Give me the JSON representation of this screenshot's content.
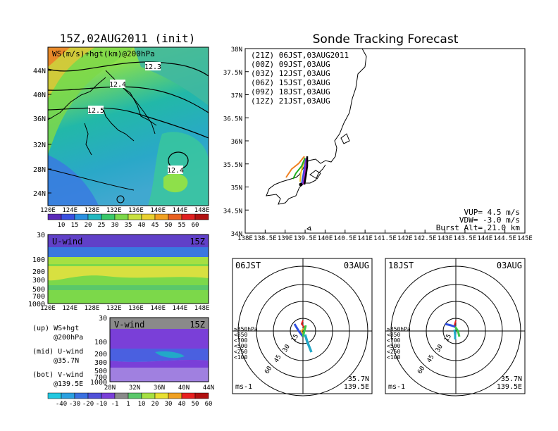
{
  "colors": {
    "purple": "#7a3fd8",
    "blue": "#2f4fe0",
    "teal": "#22a8c8",
    "green": "#3ac84a",
    "lime": "#a6e042",
    "yellow": "#e8e832",
    "orange": "#f0a020",
    "red": "#e82020",
    "dark_red": "#b01010",
    "gray": "#8a8a8a",
    "black": "#000000"
  },
  "left": {
    "title": "15Z,02AUG2011 (init)",
    "map_label": "WS(m/s)+hgt(km)@200hPa",
    "hgt_labels": [
      "12.3",
      "12.4",
      "12.5",
      "12.4"
    ],
    "lat_ticks": [
      "44N",
      "40N",
      "36N",
      "32N",
      "28N",
      "24N"
    ],
    "lon_ticks": [
      "120E",
      "124E",
      "128E",
      "132E",
      "136E",
      "140E",
      "144E",
      "148E"
    ],
    "ws_colorbar": [
      "10",
      "15",
      "20",
      "25",
      "30",
      "35",
      "40",
      "45",
      "50",
      "55",
      "60"
    ],
    "u_wind": {
      "label": "U-wind",
      "time": "15Z",
      "p_ticks": [
        "30",
        "100",
        "200",
        "300",
        "500",
        "700",
        "1000"
      ]
    },
    "v_wind": {
      "label": "V-wind",
      "time": "15Z",
      "p_ticks": [
        "30",
        "100",
        "200",
        "300",
        "500",
        "700",
        "1000"
      ],
      "lat_ticks": [
        "28N",
        "32N",
        "36N",
        "40N",
        "44N"
      ]
    },
    "legend": [
      [
        "(up) WS+hgt",
        "@200hPa"
      ],
      [
        "(mid) U-wind",
        "@35.7N"
      ],
      [
        "(bot) V-wind",
        "@139.5E"
      ]
    ],
    "wind_colorbar": [
      "-40",
      "-30",
      "-20",
      "-10",
      "-1",
      "1",
      "10",
      "20",
      "30",
      "40",
      "50",
      "60"
    ]
  },
  "right": {
    "title": "Sonde Tracking Forecast",
    "legend": [
      {
        "label": "(21Z) 06JST,03AUG2011",
        "color": "#000000"
      },
      {
        "label": "(00Z) 09JST,03AUG",
        "color": "#a020c0"
      },
      {
        "label": "(03Z) 12JST,03AUG",
        "color": "#2f4fe0"
      },
      {
        "label": "(06Z) 15JST,03AUG",
        "color": "#20b020"
      },
      {
        "label": "(09Z) 18JST,03AUG",
        "color": "#e8c020"
      },
      {
        "label": "(12Z) 21JST,03AUG",
        "color": "#f08020"
      }
    ],
    "lat_ticks": [
      "38N",
      "37.5N",
      "37N",
      "36.5N",
      "36N",
      "35.5N",
      "35N",
      "34.5N",
      "34N"
    ],
    "lon_ticks": [
      "138E",
      "138.5E",
      "139E",
      "139.5E",
      "140E",
      "140.5E",
      "141E",
      "141.5E",
      "142E",
      "142.5E",
      "143E",
      "143.5E",
      "144E",
      "144.5E",
      "145E"
    ],
    "info": [
      "VUP= 4.5 m/s",
      "VDW= -3.0 m/s",
      "Burst Alt= 21.0 km"
    ],
    "polars": [
      {
        "time": "06JST",
        "date": "03AUG",
        "lat": "35.7N",
        "lon": "139.5E",
        "unit": "ms-1",
        "rings": [
          "15",
          "30",
          "45",
          "60"
        ],
        "levels": [
          {
            "label": "≥850hPa",
            "color": "#e82020"
          },
          {
            "label": "<850",
            "color": "#f0a020"
          },
          {
            "label": "<700",
            "color": "#c8c820"
          },
          {
            "label": "<500",
            "color": "#3ac84a"
          },
          {
            "label": "<250",
            "color": "#22a8c8"
          },
          {
            "label": "<100",
            "color": "#2f4fe0"
          }
        ]
      },
      {
        "time": "18JST",
        "date": "03AUG",
        "lat": "35.7N",
        "lon": "139.5E",
        "unit": "ms-1",
        "rings": [
          "15",
          "30",
          "45",
          "60"
        ],
        "levels": [
          {
            "label": "≥850hPa",
            "color": "#e82020"
          },
          {
            "label": "<850",
            "color": "#f0a020"
          },
          {
            "label": "<700",
            "color": "#c8c820"
          },
          {
            "label": "<500",
            "color": "#3ac84a"
          },
          {
            "label": "<250",
            "color": "#22a8c8"
          },
          {
            "label": "<100",
            "color": "#2f4fe0"
          }
        ]
      }
    ]
  },
  "chart_data": [
    {
      "type": "heatmap",
      "title": "15Z,02AUG2011 (init)",
      "xlabel": "",
      "ylabel": "",
      "x_ticks": [
        "120E",
        "124E",
        "128E",
        "132E",
        "136E",
        "140E",
        "144E",
        "148E"
      ],
      "y_ticks": [
        "24N",
        "28N",
        "32N",
        "36N",
        "40N",
        "44N"
      ]
    },
    {
      "type": "line",
      "title": "Sonde Tracking Forecast",
      "x_ticks": [
        "138E",
        "145E"
      ],
      "y_ticks": [
        "34N",
        "38N"
      ]
    }
  ]
}
